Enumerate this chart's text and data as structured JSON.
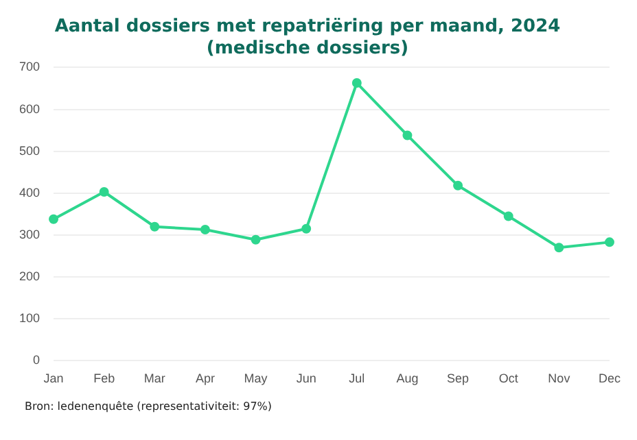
{
  "chart_data": {
    "type": "line",
    "title": [
      "Aantal dossiers met repatriëring per maand, 2024",
      "(medische dossiers)"
    ],
    "categories": [
      "Jan",
      "Feb",
      "Mar",
      "Apr",
      "May",
      "Jun",
      "Jul",
      "Aug",
      "Sep",
      "Oct",
      "Nov",
      "Dec"
    ],
    "series": [
      {
        "color": "#2ed68e",
        "values": [
          338,
          403,
          320,
          313,
          289,
          315,
          663,
          538,
          418,
          345,
          270,
          283
        ]
      }
    ],
    "ylim": [
      0,
      700
    ],
    "yticks": [
      0,
      100,
      200,
      300,
      400,
      500,
      600,
      700
    ],
    "grid": "y",
    "marker": "circle",
    "line_style": "solid",
    "legend": false,
    "annotations": [
      "Bron: ledenenquête (representativiteit: 97%)"
    ]
  }
}
